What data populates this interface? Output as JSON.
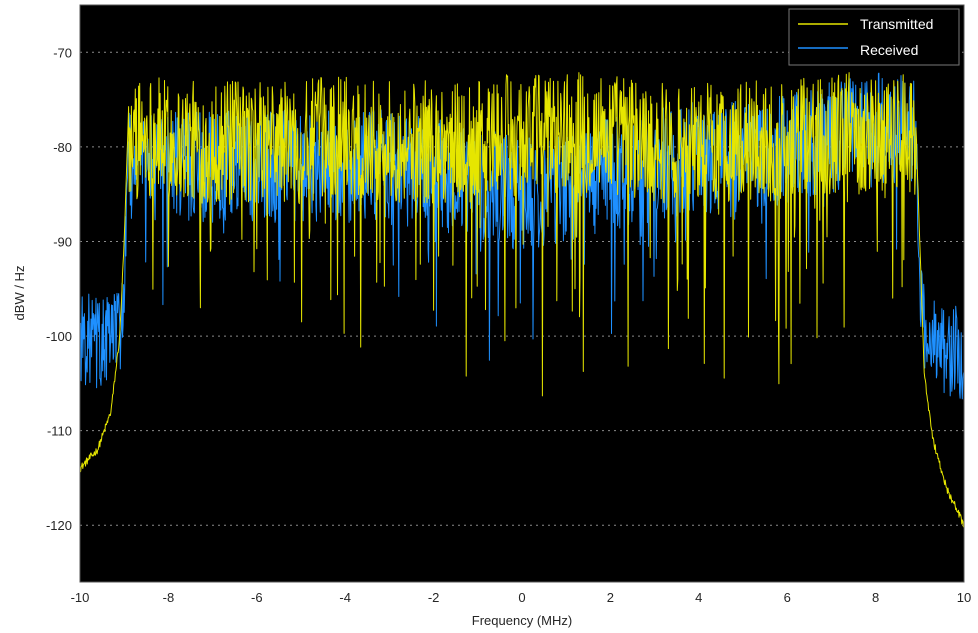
{
  "chart_data": {
    "type": "line",
    "title": "",
    "xlabel": "Frequency (MHz)",
    "ylabel": "dBW / Hz",
    "xlim": [
      -10,
      10
    ],
    "ylim": [
      -126,
      -65
    ],
    "xticks": [
      -10,
      -8,
      -6,
      -4,
      -2,
      0,
      2,
      4,
      6,
      8,
      10
    ],
    "yticks": [
      -70,
      -80,
      -90,
      -100,
      -110,
      -120
    ],
    "grid": true,
    "legend_position": "top-right",
    "background_color": "#000000",
    "series": [
      {
        "name": "Transmitted",
        "color": "#e6e600",
        "x": [
          -10,
          -9.6,
          -9.3,
          -9.1,
          -9.0,
          -8.9,
          -8.5,
          -8.0,
          -7.0,
          -6.0,
          -5.0,
          -4.0,
          -3.0,
          -2.0,
          -1.0,
          0,
          1.0,
          2.0,
          3.0,
          4.0,
          5.0,
          6.0,
          7.0,
          8.0,
          8.5,
          8.9,
          9.0,
          9.1,
          9.3,
          9.6,
          10
        ],
        "y": [
          -114,
          -112,
          -108,
          -100,
          -90,
          -76,
          -75,
          -76,
          -76,
          -76,
          -76,
          -75,
          -76,
          -76,
          -76,
          -75,
          -75,
          -75,
          -76,
          -76,
          -76,
          -76,
          -75,
          -75,
          -75,
          -76,
          -90,
          -104,
          -111,
          -116,
          -120
        ]
      },
      {
        "name": "Received",
        "color": "#1e90ff",
        "x": [
          -10,
          -9.5,
          -9.1,
          -9.0,
          -8.9,
          -8.5,
          -8.0,
          -7.0,
          -6.0,
          -5.0,
          -4.0,
          -3.0,
          -2.0,
          -1.0,
          0,
          1.0,
          2.0,
          3.0,
          4.0,
          5.0,
          6.0,
          7.0,
          8.0,
          8.5,
          8.9,
          9.0,
          9.1,
          9.5,
          10
        ],
        "y": [
          -100,
          -101,
          -99,
          -96,
          -80,
          -80,
          -80,
          -80,
          -80,
          -80,
          -80,
          -80,
          -81,
          -82,
          -83,
          -82,
          -81,
          -80,
          -79,
          -79,
          -78,
          -77,
          -76,
          -76,
          -77,
          -96,
          -100,
          -101,
          -102
        ]
      }
    ]
  }
}
